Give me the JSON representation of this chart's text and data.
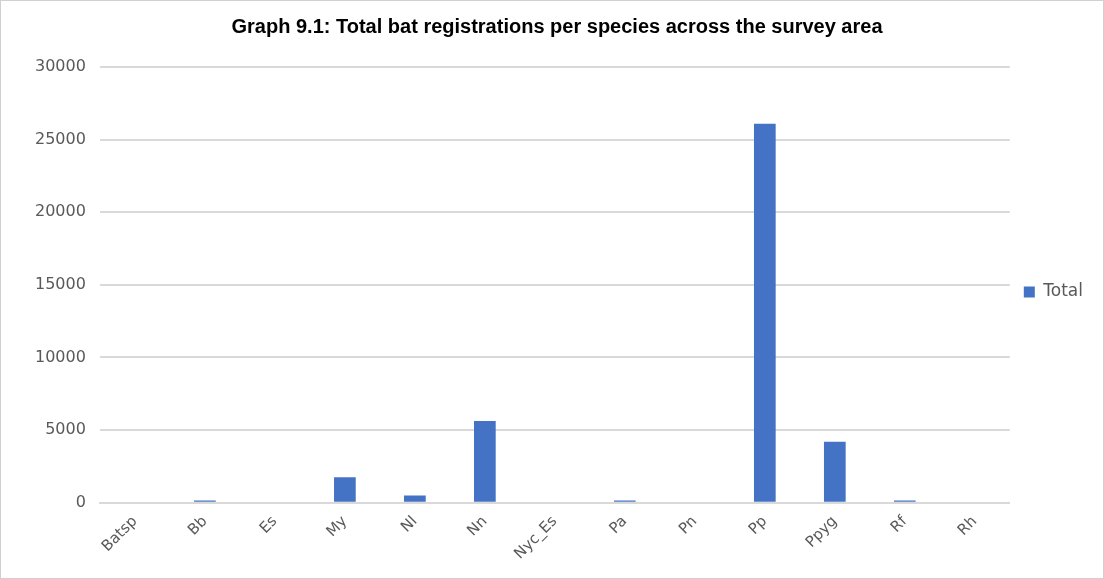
{
  "chart_data": {
    "type": "bar",
    "title": "Graph 9.1: Total bat registrations per species across the survey area",
    "categories": [
      "Batsp",
      "Bb",
      "Es",
      "My",
      "Nl",
      "Nn",
      "Nyc_Es",
      "Pa",
      "Pn",
      "Pp",
      "Ppyg",
      "Rf",
      "Rh"
    ],
    "series": [
      {
        "name": "Total",
        "color": "#4472c4",
        "values": [
          0,
          150,
          0,
          1750,
          500,
          5630,
          0,
          150,
          0,
          26100,
          4200,
          150,
          0
        ]
      }
    ],
    "ylim": [
      0,
      30000
    ],
    "yticks": [
      0,
      5000,
      10000,
      15000,
      20000,
      25000,
      30000
    ],
    "grid": "y",
    "legend": "right"
  }
}
